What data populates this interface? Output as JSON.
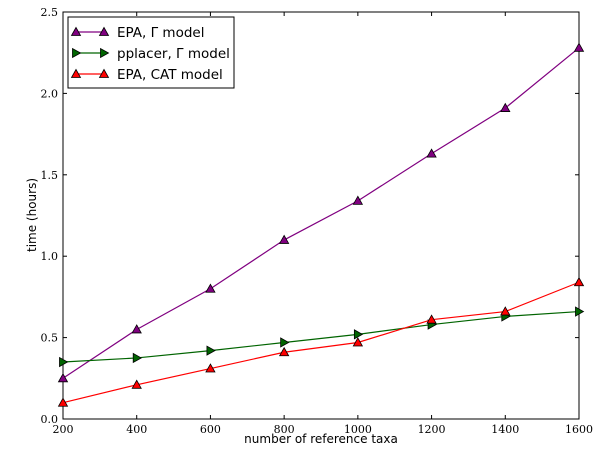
{
  "chart_data": {
    "type": "line",
    "xlabel": "number of reference taxa",
    "ylabel": "time (hours)",
    "xlim": [
      200,
      1600
    ],
    "ylim": [
      0.0,
      2.5
    ],
    "xticks": [
      200,
      400,
      600,
      800,
      1000,
      1200,
      1400,
      1600
    ],
    "yticks": [
      0.0,
      0.5,
      1.0,
      1.5,
      2.0,
      2.5
    ],
    "ytick_labels": [
      "0.0",
      "0.5",
      "1.0",
      "1.5",
      "2.0",
      "2.5"
    ],
    "grid": false,
    "legend_position": "top-left",
    "x": [
      200,
      400,
      600,
      800,
      1000,
      1200,
      1400,
      1600
    ],
    "series": [
      {
        "name": "EPA, Γ model",
        "marker": "triangle-up",
        "color": "#800080",
        "values": [
          0.25,
          0.55,
          0.8,
          1.1,
          1.34,
          1.63,
          1.91,
          2.28
        ]
      },
      {
        "name": "pplacer, Γ model",
        "marker": "triangle-right",
        "color": "#006400",
        "values": [
          0.35,
          0.375,
          0.42,
          0.47,
          0.52,
          0.58,
          0.63,
          0.66
        ]
      },
      {
        "name": "EPA, CAT model",
        "marker": "triangle-up",
        "color": "#ff0000",
        "values": [
          0.1,
          0.21,
          0.31,
          0.41,
          0.47,
          0.61,
          0.66,
          0.84
        ]
      }
    ]
  }
}
